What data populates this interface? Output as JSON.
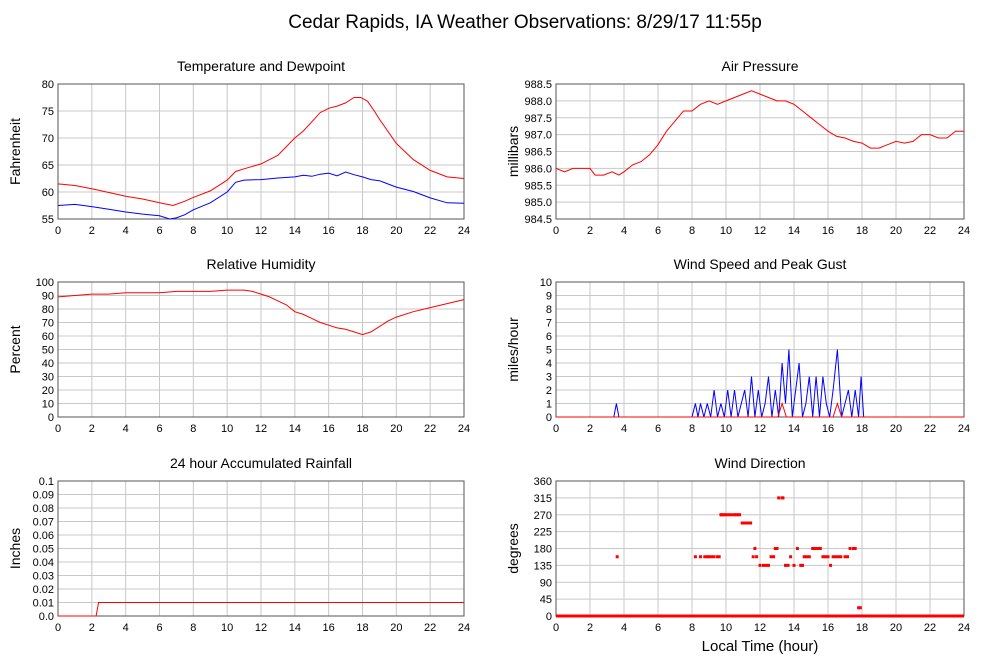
{
  "page": {
    "title": "Cedar Rapids, IA Weather Observations: 8/29/17 11:55p"
  },
  "footer": {
    "xlabel": "Local Time (hour)"
  },
  "chart_data": [
    {
      "id": "temp",
      "type": "line",
      "title": "Temperature and Dewpoint",
      "ylabel": "Fahrenheit",
      "xlim": [
        0,
        24
      ],
      "ylim": [
        55,
        80
      ],
      "xticks": [
        "0",
        "2",
        "4",
        "6",
        "8",
        "10",
        "12",
        "14",
        "16",
        "18",
        "20",
        "22",
        "24"
      ],
      "yticks": [
        "55",
        "60",
        "65",
        "70",
        "75",
        "80"
      ],
      "grid": true,
      "series": [
        {
          "color": "#ff0000",
          "x": [
            0,
            1,
            2,
            3,
            4,
            5,
            6,
            6.8,
            7.5,
            8,
            9,
            10,
            10.5,
            11,
            12,
            13,
            14,
            14.5,
            15,
            15.5,
            16,
            16.5,
            17,
            17.5,
            17.9,
            18.3,
            18.7,
            19,
            20,
            21,
            22,
            23,
            24
          ],
          "values": [
            61.5,
            61.2,
            60.6,
            59.9,
            59.2,
            58.7,
            58.0,
            57.5,
            58.3,
            59.0,
            60.2,
            62.2,
            63.8,
            64.3,
            65.2,
            66.8,
            70.0,
            71.3,
            73.0,
            74.7,
            75.5,
            75.9,
            76.5,
            77.5,
            77.5,
            76.8,
            75.0,
            73.5,
            69.0,
            66.0,
            64.0,
            62.8,
            62.5
          ]
        },
        {
          "color": "#0000ff",
          "x": [
            0,
            1,
            2,
            3,
            4,
            5,
            6,
            6.6,
            7,
            7.5,
            8,
            9,
            10,
            10.5,
            11,
            12,
            13,
            14,
            14.5,
            15,
            15.5,
            16,
            16.5,
            17,
            17.5,
            18,
            18.5,
            19,
            20,
            21,
            22,
            23,
            24
          ],
          "values": [
            57.5,
            57.7,
            57.3,
            56.8,
            56.3,
            55.9,
            55.6,
            55.0,
            55.2,
            55.8,
            56.7,
            58.0,
            60.0,
            61.8,
            62.2,
            62.3,
            62.6,
            62.8,
            63.1,
            62.9,
            63.3,
            63.5,
            63.0,
            63.7,
            63.2,
            62.8,
            62.3,
            62.1,
            60.9,
            60.1,
            58.9,
            58.0,
            57.9
          ]
        }
      ]
    },
    {
      "id": "pressure",
      "type": "line",
      "title": "Air Pressure",
      "ylabel": "millibars",
      "xlim": [
        0,
        24
      ],
      "ylim": [
        984.5,
        988.5
      ],
      "xticks": [
        "0",
        "2",
        "4",
        "6",
        "8",
        "10",
        "12",
        "14",
        "16",
        "18",
        "20",
        "22",
        "24"
      ],
      "yticks": [
        "984.5",
        "985.0",
        "985.5",
        "986.0",
        "986.5",
        "987.0",
        "987.5",
        "988.0",
        "988.5"
      ],
      "grid": true,
      "series": [
        {
          "color": "#ff0000",
          "x": [
            0,
            0.5,
            1,
            1.5,
            2,
            2.3,
            2.8,
            3.3,
            3.7,
            4,
            4.5,
            5,
            5.5,
            6,
            6.5,
            7,
            7.5,
            8,
            8.5,
            9,
            9.5,
            10,
            10.5,
            11,
            11.5,
            12,
            12.5,
            13,
            13.5,
            14,
            14.5,
            15,
            15.5,
            16,
            16.5,
            17,
            17.5,
            18,
            18.5,
            19,
            19.5,
            20,
            20.5,
            21,
            21.5,
            22,
            22.5,
            23,
            23.5,
            24
          ],
          "values": [
            986.0,
            985.9,
            986.0,
            986.0,
            986.0,
            985.8,
            985.8,
            985.9,
            985.8,
            985.9,
            986.1,
            986.2,
            986.4,
            986.7,
            987.1,
            987.4,
            987.7,
            987.7,
            987.9,
            988.0,
            987.9,
            988.0,
            988.1,
            988.2,
            988.3,
            988.2,
            988.1,
            988.0,
            988.0,
            987.9,
            987.7,
            987.5,
            987.3,
            987.1,
            986.95,
            986.9,
            986.8,
            986.75,
            986.6,
            986.6,
            986.7,
            986.8,
            986.75,
            986.8,
            987.0,
            987.0,
            986.9,
            986.9,
            987.1,
            987.1
          ]
        }
      ]
    },
    {
      "id": "humidity",
      "type": "line",
      "title": "Relative Humidity",
      "ylabel": "Percent",
      "xlim": [
        0,
        24
      ],
      "ylim": [
        0,
        100
      ],
      "xticks": [
        "0",
        "2",
        "4",
        "6",
        "8",
        "10",
        "12",
        "14",
        "16",
        "18",
        "20",
        "22",
        "24"
      ],
      "yticks": [
        "0",
        "10",
        "20",
        "30",
        "40",
        "50",
        "60",
        "70",
        "80",
        "90",
        "100"
      ],
      "grid": true,
      "series": [
        {
          "color": "#ff0000",
          "x": [
            0,
            1,
            2,
            3,
            4,
            5,
            6,
            7,
            8,
            9,
            10,
            11,
            11.5,
            12,
            12.5,
            13,
            13.5,
            14,
            14.5,
            15,
            15.5,
            16,
            16.5,
            17,
            17.5,
            18,
            18.5,
            19,
            19.5,
            20,
            21,
            22,
            23,
            24
          ],
          "values": [
            89,
            90,
            91,
            91,
            92,
            92,
            92,
            93,
            93,
            93,
            94,
            94,
            93,
            91,
            89,
            86,
            83,
            78,
            76,
            73,
            70,
            68,
            66,
            65,
            63,
            61,
            63,
            67,
            71,
            74,
            78,
            81,
            84,
            87
          ]
        }
      ]
    },
    {
      "id": "wind",
      "type": "line",
      "title": "Wind Speed and Peak Gust",
      "ylabel": "miles/hour",
      "xlim": [
        0,
        24
      ],
      "ylim": [
        0,
        10
      ],
      "xticks": [
        "0",
        "2",
        "4",
        "6",
        "8",
        "10",
        "12",
        "14",
        "16",
        "18",
        "20",
        "22",
        "24"
      ],
      "yticks": [
        "0",
        "1",
        "2",
        "3",
        "4",
        "5",
        "6",
        "7",
        "8",
        "9",
        "10"
      ],
      "grid": true,
      "series": [
        {
          "color": "#0000ff",
          "x": [
            0,
            3.4,
            3.55,
            3.7,
            8.0,
            8.2,
            8.35,
            8.5,
            8.7,
            8.9,
            9.1,
            9.3,
            9.5,
            9.7,
            9.9,
            10.1,
            10.3,
            10.5,
            10.7,
            10.9,
            11.1,
            11.3,
            11.5,
            11.7,
            11.9,
            12.1,
            12.3,
            12.5,
            12.7,
            12.9,
            13.1,
            13.3,
            13.5,
            13.7,
            13.9,
            14.1,
            14.3,
            14.5,
            14.7,
            14.9,
            15.1,
            15.3,
            15.5,
            15.7,
            15.9,
            16.1,
            16.3,
            16.55,
            16.8,
            17.0,
            17.2,
            17.4,
            17.6,
            17.8,
            17.95,
            18.1,
            24
          ],
          "values": [
            0,
            0,
            1,
            0,
            0,
            1,
            0,
            1,
            0,
            1,
            0,
            2,
            0,
            1,
            0,
            2,
            0,
            2,
            0,
            1,
            2,
            0,
            3,
            0,
            2,
            0,
            1,
            3,
            0,
            2,
            0,
            4,
            1,
            5,
            0,
            2,
            4,
            0,
            1,
            3,
            0,
            3,
            0,
            3,
            1,
            0,
            2,
            5,
            0,
            1,
            2,
            0,
            2,
            0,
            3,
            0,
            0
          ]
        },
        {
          "color": "#ff0000",
          "x": [
            0,
            13.05,
            13.3,
            13.55,
            16.3,
            16.55,
            16.8,
            24
          ],
          "values": [
            0,
            0,
            1,
            0,
            0,
            1,
            0,
            0
          ]
        }
      ]
    },
    {
      "id": "rain",
      "type": "line",
      "title": "24 hour Accumulated Rainfall",
      "ylabel": "Inches",
      "xlim": [
        0,
        24
      ],
      "ylim": [
        0,
        0.1
      ],
      "xticks": [
        "0",
        "2",
        "4",
        "6",
        "8",
        "10",
        "12",
        "14",
        "16",
        "18",
        "20",
        "22",
        "24"
      ],
      "yticks": [
        "0.0",
        "0.01",
        "0.02",
        "0.03",
        "0.04",
        "0.05",
        "0.06",
        "0.07",
        "0.08",
        "0.09",
        "0.1"
      ],
      "grid": true,
      "series": [
        {
          "color": "#ff0000",
          "x": [
            0,
            2.25,
            2.4,
            24
          ],
          "values": [
            0,
            0,
            0.01,
            0.01
          ]
        }
      ]
    },
    {
      "id": "direction",
      "type": "scatter",
      "title": "Wind Direction",
      "ylabel": "degrees",
      "xlim": [
        0,
        24
      ],
      "ylim": [
        0,
        360
      ],
      "xticks": [
        "0",
        "2",
        "4",
        "6",
        "8",
        "10",
        "12",
        "14",
        "16",
        "18",
        "20",
        "22",
        "24"
      ],
      "yticks": [
        "0",
        "45",
        "90",
        "135",
        "180",
        "225",
        "270",
        "315",
        "360"
      ],
      "grid": true,
      "baseline_zero": true,
      "series": [
        {
          "color": "#ff0000",
          "x": [
            3.6,
            8.2,
            8.5,
            8.75,
            8.9,
            9.0,
            9.15,
            9.3,
            9.5,
            9.6,
            9.7,
            9.75,
            9.85,
            9.95,
            10.05,
            10.2,
            10.35,
            10.5,
            10.6,
            10.7,
            10.8,
            10.95,
            11.1,
            11.15,
            11.3,
            11.45,
            11.6,
            11.7,
            11.8,
            12.0,
            12.2,
            12.35,
            12.5,
            12.65,
            12.8,
            12.9,
            13.0,
            13.1,
            13.3,
            13.35,
            13.5,
            13.65,
            13.8,
            14.0,
            14.2,
            14.4,
            14.5,
            14.6,
            14.75,
            14.9,
            15.1,
            15.25,
            15.4,
            15.55,
            15.7,
            15.85,
            16.0,
            16.15,
            16.3,
            16.45,
            16.6,
            16.75,
            17.0,
            17.15,
            17.3,
            17.5,
            17.6,
            17.8,
            17.9
          ],
          "values": [
            158,
            158,
            158,
            158,
            158,
            158,
            158,
            158,
            158,
            158,
            270,
            270,
            270,
            270,
            270,
            270,
            270,
            270,
            270,
            270,
            270,
            248,
            248,
            248,
            248,
            248,
            158,
            180,
            158,
            135,
            135,
            135,
            135,
            158,
            158,
            180,
            180,
            315,
            315,
            315,
            135,
            135,
            158,
            135,
            180,
            135,
            135,
            158,
            158,
            158,
            180,
            180,
            180,
            180,
            158,
            158,
            158,
            135,
            158,
            158,
            158,
            158,
            158,
            158,
            180,
            180,
            180,
            22,
            22
          ]
        }
      ]
    }
  ]
}
